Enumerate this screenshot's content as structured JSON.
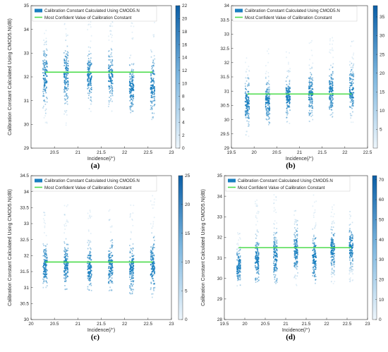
{
  "colors": {
    "scatter": "#1a7fc0",
    "fit_line": "#4ddc4d",
    "colorbar_low": "#e9f3fb",
    "colorbar_high": "#0a62a8"
  },
  "chart_data": [
    {
      "type": "heatmap",
      "panel_label": "(a)",
      "xlabel": "Incidence(/°)",
      "ylabel": "Calibration Constant Calculated Using CMOD5.N(dB)",
      "legend": [
        "Calibration Constant Calculated Using CMOD5.N",
        "Most Confident Value of Calibration Constant"
      ],
      "legend_placement": "top-left",
      "xlim": [
        20,
        23
      ],
      "ylim": [
        29,
        35
      ],
      "xticks": [
        20.5,
        21,
        21.5,
        22,
        22.5,
        23
      ],
      "yticks": [
        29,
        30,
        31,
        32,
        33,
        34,
        35
      ],
      "colorbar_ticks": [
        0,
        2,
        4,
        6,
        8,
        10,
        12,
        14,
        16,
        18,
        20,
        22
      ],
      "colorbar_range": [
        0,
        22
      ],
      "incidence_columns": [
        20.3,
        20.75,
        21.25,
        21.7,
        22.15,
        22.6
      ],
      "column_y_range": [
        [
          30.0,
          34.4
        ],
        [
          29.8,
          34.5
        ],
        [
          30.5,
          34.4
        ],
        [
          30.5,
          34.5
        ],
        [
          30.4,
          34.5
        ],
        [
          30.2,
          34.5
        ]
      ],
      "column_peak": [
        32.0,
        32.1,
        32.0,
        32.0,
        31.5,
        31.6
      ],
      "fit_line": {
        "x": [
          20.3,
          22.6
        ],
        "y": 32.2
      }
    },
    {
      "type": "heatmap",
      "panel_label": "(b)",
      "xlabel": "Incidence(/°)",
      "ylabel": "",
      "legend": [
        "Calibration Constant Calculated Using CMOD5.N",
        "Most Confident Value of Calibration Constant"
      ],
      "legend_placement": "top-left",
      "xlim": [
        19.5,
        22.5
      ],
      "ylim": [
        29,
        34
      ],
      "xticks": [
        19.5,
        20,
        20.5,
        21,
        21.5,
        22,
        22.5
      ],
      "yticks": [
        29,
        29.5,
        30,
        30.5,
        31,
        31.5,
        32,
        32.5,
        33,
        33.5,
        34
      ],
      "colorbar_ticks": [
        5,
        10,
        15,
        20,
        25,
        30,
        35
      ],
      "colorbar_range": [
        0,
        38
      ],
      "incidence_columns": [
        19.85,
        20.3,
        20.75,
        21.25,
        21.7,
        22.15
      ],
      "column_y_range": [
        [
          29.4,
          32.2
        ],
        [
          29.8,
          32.6
        ],
        [
          29.8,
          32.4
        ],
        [
          29.9,
          32.8
        ],
        [
          29.9,
          32.9
        ],
        [
          29.9,
          32.8
        ]
      ],
      "column_peak": [
        30.6,
        30.6,
        30.8,
        30.9,
        31.0,
        31.0
      ],
      "fit_line": {
        "x": [
          19.85,
          22.15
        ],
        "y": 30.9
      }
    },
    {
      "type": "heatmap",
      "panel_label": "(c)",
      "xlabel": "Incidence(/°)",
      "ylabel": "Calibration Constant Calculated Using CMOD5.N(dB)",
      "legend": [
        "Calibration Constant Calculated Using CMOD5.N",
        "Most Confident Value of Calibration Constant"
      ],
      "legend_placement": "top-left",
      "xlim": [
        20,
        23
      ],
      "ylim": [
        30,
        34.5
      ],
      "xticks": [
        20,
        20.5,
        21,
        21.5,
        22,
        22.5,
        23
      ],
      "yticks": [
        30,
        30.5,
        31,
        31.5,
        32,
        32.5,
        33,
        33.5,
        34,
        34.5
      ],
      "colorbar_ticks": [
        0,
        5,
        10,
        15,
        20,
        25
      ],
      "colorbar_range": [
        0,
        25
      ],
      "incidence_columns": [
        20.3,
        20.75,
        21.25,
        21.7,
        22.15,
        22.6
      ],
      "column_y_range": [
        [
          31.0,
          33.4
        ],
        [
          30.9,
          33.6
        ],
        [
          30.9,
          33.5
        ],
        [
          30.9,
          33.6
        ],
        [
          30.8,
          33.7
        ],
        [
          30.6,
          33.9
        ]
      ],
      "column_peak": [
        31.7,
        31.7,
        31.6,
        31.7,
        31.6,
        31.7
      ],
      "fit_line": {
        "x": [
          20.3,
          22.6
        ],
        "y": 31.8
      }
    },
    {
      "type": "heatmap",
      "panel_label": "(d)",
      "xlabel": "Incidence(/°)",
      "ylabel": "Calibration Constant Calculated Using CMOD5.N(dB)",
      "legend": [
        "Calibration Constant Calculated Using CMOD5.N",
        "Most Confident Value of Calibration Constant"
      ],
      "legend_placement": "top-left",
      "xlim": [
        19.5,
        23
      ],
      "ylim": [
        28,
        35
      ],
      "xticks": [
        19.5,
        20,
        20.5,
        21,
        21.5,
        22,
        22.5,
        23
      ],
      "yticks": [
        28,
        29,
        30,
        31,
        32,
        33,
        34,
        35
      ],
      "colorbar_ticks": [
        0,
        10,
        20,
        30,
        40,
        50,
        60,
        70
      ],
      "colorbar_range": [
        0,
        72
      ],
      "incidence_columns": [
        19.85,
        20.3,
        20.75,
        21.25,
        21.7,
        22.15,
        22.6
      ],
      "column_y_range": [
        [
          29.6,
          32.4
        ],
        [
          29.6,
          33.9
        ],
        [
          29.6,
          34.1
        ],
        [
          29.6,
          33.6
        ],
        [
          29.6,
          34.1
        ],
        [
          29.7,
          33.6
        ],
        [
          29.8,
          33.4
        ]
      ],
      "column_peak": [
        30.6,
        30.9,
        31.0,
        31.4,
        31.0,
        31.4,
        31.5
      ],
      "fit_line": {
        "x": [
          19.85,
          22.6
        ],
        "y": 31.5
      }
    }
  ]
}
